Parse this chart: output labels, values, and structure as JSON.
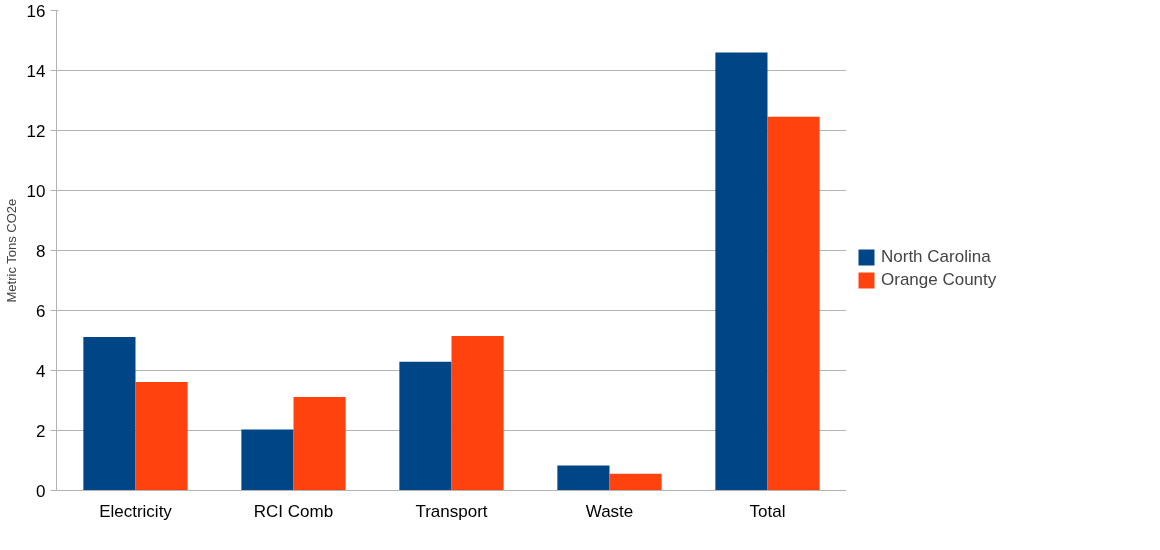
{
  "chart_data": {
    "type": "bar",
    "ylabel": "Metric Tons CO2e",
    "categories": [
      "Electricity",
      "RCI Comb",
      "Transport",
      "Waste",
      "Total"
    ],
    "series": [
      {
        "name": "North Carolina",
        "color": "#004586",
        "values": [
          5.12,
          2.03,
          4.29,
          0.83,
          14.6
        ]
      },
      {
        "name": "Orange County",
        "color": "#ff420e",
        "values": [
          3.62,
          3.12,
          5.15,
          0.56,
          12.46
        ]
      }
    ],
    "ylim": [
      0,
      16
    ],
    "yticks": [
      0,
      2,
      4,
      6,
      8,
      10,
      12,
      14,
      16
    ],
    "grid": "y",
    "legend": "right"
  }
}
